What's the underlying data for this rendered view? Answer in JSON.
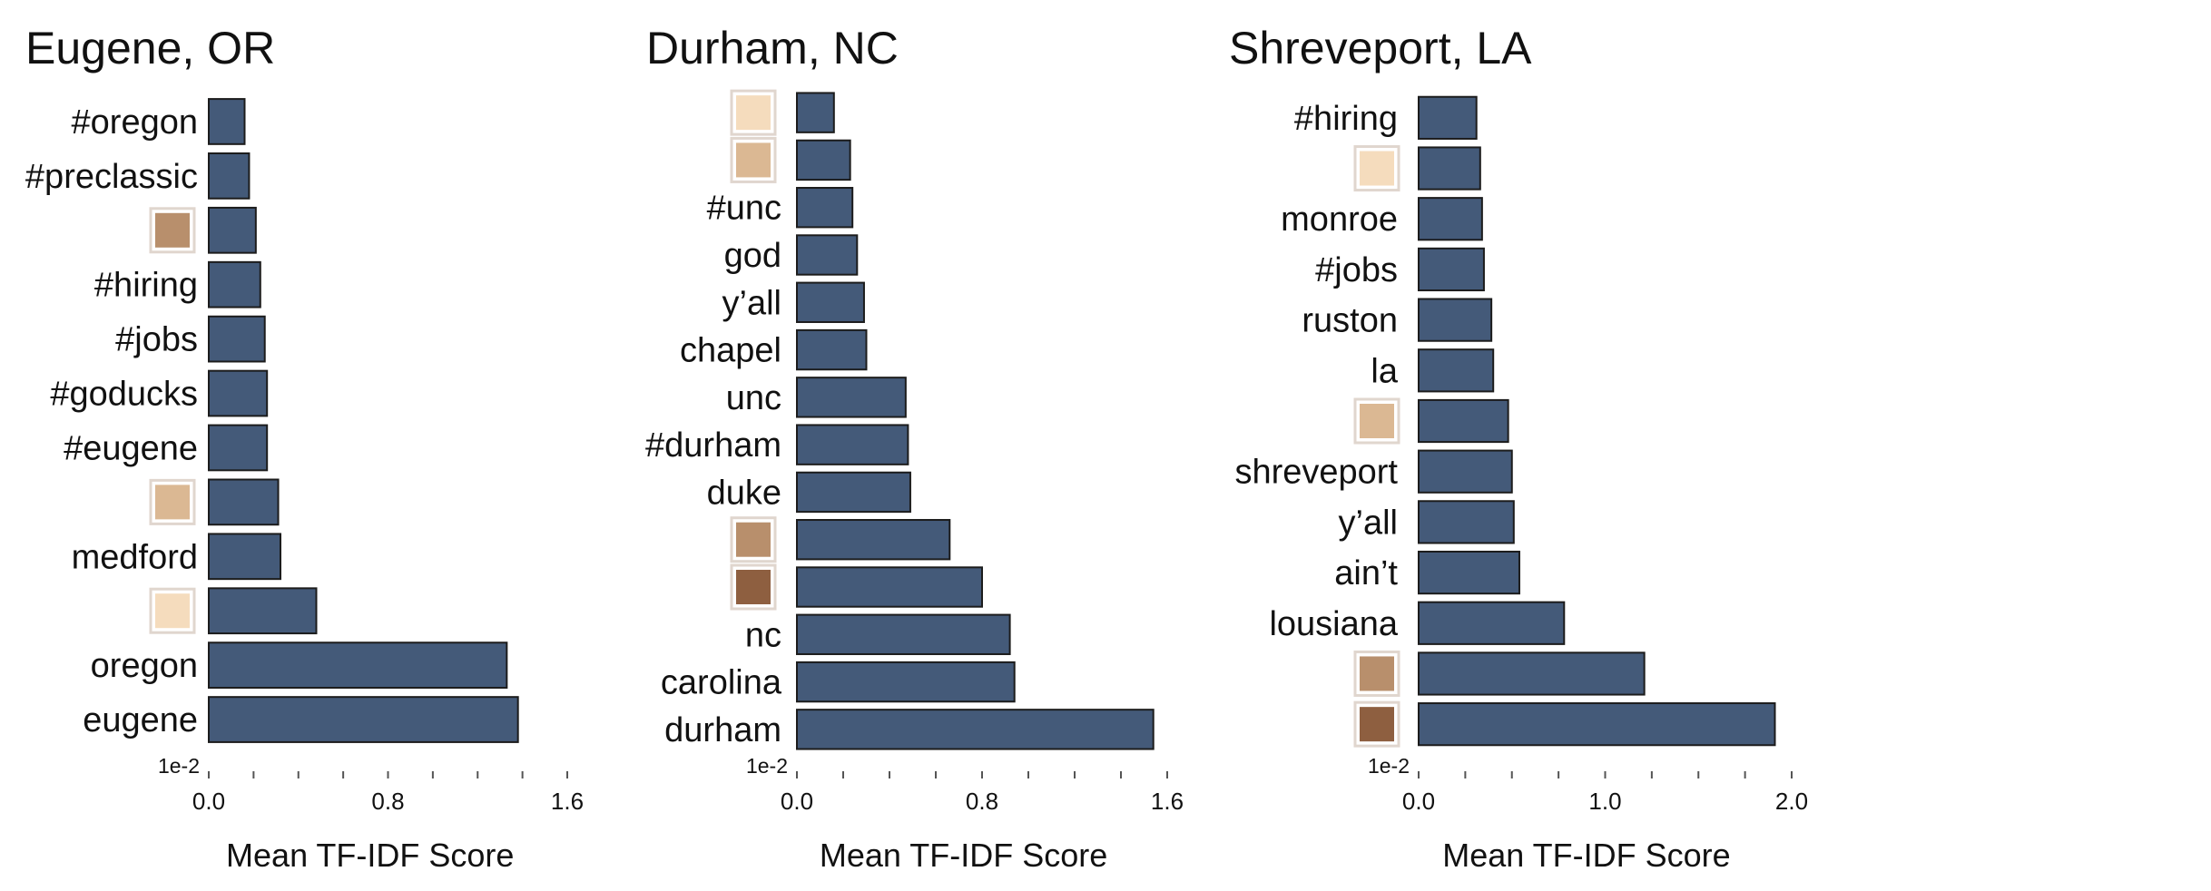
{
  "chart_data": [
    {
      "type": "bar",
      "orientation": "horizontal",
      "title": "Eugene, OR",
      "xlabel": "Mean TF-IDF Score",
      "axis_exponent_label": "1e-2",
      "xlim": [
        0,
        1.6
      ],
      "x_tick_labels": [
        "0.0",
        "0.8",
        "1.6"
      ],
      "x_tick_values": [
        0.0,
        0.8,
        1.6
      ],
      "minor_tick_step": 0.2,
      "bar_color": "#445a79",
      "categories": [
        {
          "label": "#oregon",
          "value": 0.16
        },
        {
          "label": "#preclassic",
          "value": 0.18
        },
        {
          "label": "",
          "swatch": "#b88f6c",
          "value": 0.21
        },
        {
          "label": "#hiring",
          "value": 0.23
        },
        {
          "label": "#jobs",
          "value": 0.25
        },
        {
          "label": "#goducks",
          "value": 0.26
        },
        {
          "label": "#eugene",
          "value": 0.26
        },
        {
          "label": "",
          "swatch": "#dbb893",
          "value": 0.31
        },
        {
          "label": "medford",
          "value": 0.32
        },
        {
          "label": "",
          "swatch": "#f5dcbd",
          "value": 0.48
        },
        {
          "label": "oregon",
          "value": 1.33
        },
        {
          "label": "eugene",
          "value": 1.38
        }
      ]
    },
    {
      "type": "bar",
      "orientation": "horizontal",
      "title": "Durham, NC",
      "xlabel": "Mean TF-IDF Score",
      "axis_exponent_label": "1e-2",
      "xlim": [
        0,
        1.6
      ],
      "x_tick_labels": [
        "0.0",
        "0.8",
        "1.6"
      ],
      "x_tick_values": [
        0.0,
        0.8,
        1.6
      ],
      "minor_tick_step": 0.2,
      "bar_color": "#445a79",
      "categories": [
        {
          "label": "",
          "swatch": "#f5dcbd",
          "value": 0.16
        },
        {
          "label": "",
          "swatch": "#dbb893",
          "value": 0.23
        },
        {
          "label": "#unc",
          "value": 0.24
        },
        {
          "label": "god",
          "value": 0.26
        },
        {
          "label": "y’all",
          "value": 0.29
        },
        {
          "label": "chapel",
          "value": 0.3
        },
        {
          "label": "unc",
          "value": 0.47
        },
        {
          "label": "#durham",
          "value": 0.48
        },
        {
          "label": "duke",
          "value": 0.49
        },
        {
          "label": "",
          "swatch": "#b88f6c",
          "value": 0.66
        },
        {
          "label": "",
          "swatch": "#8e5f40",
          "value": 0.8
        },
        {
          "label": "nc",
          "value": 0.92
        },
        {
          "label": "carolina",
          "value": 0.94
        },
        {
          "label": "durham",
          "value": 1.54
        }
      ]
    },
    {
      "type": "bar",
      "orientation": "horizontal",
      "title": "Shreveport, LA",
      "xlabel": "Mean TF-IDF Score",
      "axis_exponent_label": "1e-2",
      "xlim": [
        0,
        2.0
      ],
      "x_tick_labels": [
        "0.0",
        "1.0",
        "2.0"
      ],
      "x_tick_values": [
        0.0,
        1.0,
        2.0
      ],
      "minor_tick_step": 0.25,
      "bar_color": "#445a79",
      "categories": [
        {
          "label": "#hiring",
          "value": 0.31
        },
        {
          "label": "",
          "swatch": "#f5dcbd",
          "value": 0.33
        },
        {
          "label": "monroe",
          "value": 0.34
        },
        {
          "label": "#jobs",
          "value": 0.35
        },
        {
          "label": "ruston",
          "value": 0.39
        },
        {
          "label": "la",
          "value": 0.4
        },
        {
          "label": "",
          "swatch": "#dbb893",
          "value": 0.48
        },
        {
          "label": "shreveport",
          "value": 0.5
        },
        {
          "label": "y’all",
          "value": 0.51
        },
        {
          "label": "ain’t",
          "value": 0.54
        },
        {
          "label": "lousiana",
          "value": 0.78
        },
        {
          "label": "",
          "swatch": "#b88f6c",
          "value": 1.21
        },
        {
          "label": "",
          "swatch": "#8e5f40",
          "value": 1.91
        }
      ]
    }
  ]
}
